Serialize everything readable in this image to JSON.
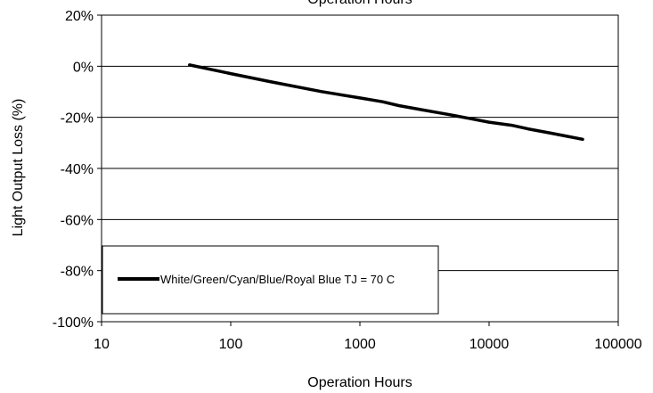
{
  "chart_data": {
    "type": "line",
    "title": "Operation Hours",
    "xlabel": "Operation Hours",
    "ylabel": "Light Output Loss (%)",
    "xscale": "log",
    "xlim": [
      10,
      100000
    ],
    "ylim": [
      -100,
      20
    ],
    "xticks": [
      "10",
      "100",
      "1000",
      "10000",
      "100000"
    ],
    "yticks": [
      "20%",
      "0%",
      "-20%",
      "-40%",
      "-60%",
      "-80%",
      "-100%"
    ],
    "grid": "horizontal",
    "legend_position": "lower-left",
    "series": [
      {
        "name": "White/Green/Cyan/Blue/Royal Blue TJ = 70 C",
        "color": "#000000",
        "x": [
          48,
          100,
          200,
          500,
          1000,
          1500,
          2000,
          3000,
          5000,
          7000,
          10000,
          15000,
          20000,
          30000,
          40000,
          53000
        ],
        "y": [
          0.5,
          -2.9,
          -6.0,
          -9.9,
          -12.4,
          -13.9,
          -15.4,
          -17.0,
          -19.0,
          -20.4,
          -21.9,
          -23.1,
          -24.5,
          -26.2,
          -27.4,
          -28.6
        ]
      }
    ]
  }
}
